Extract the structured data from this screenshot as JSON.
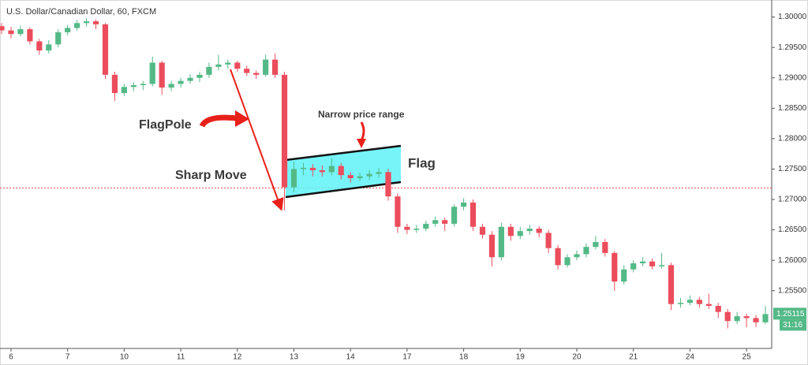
{
  "chart_data": {
    "type": "candlestick",
    "title": "U.S. Dollar/Canadian Dollar, 60, FXCM",
    "up_color": "#53b987",
    "down_color": "#eb4d5c",
    "grid": false,
    "xlim": [
      -0.17,
      81.67
    ],
    "ylim": [
      1.2455,
      1.3028
    ],
    "yticks": [
      {
        "value": 1.255,
        "label": "1.25500"
      },
      {
        "value": 1.26,
        "label": "1.26000"
      },
      {
        "value": 1.265,
        "label": "1.26500"
      },
      {
        "value": 1.27,
        "label": "1.27000"
      },
      {
        "value": 1.275,
        "label": "1.27500"
      },
      {
        "value": 1.28,
        "label": "1.28000"
      },
      {
        "value": 1.285,
        "label": "1.28500"
      },
      {
        "value": 1.29,
        "label": "1.29000"
      },
      {
        "value": 1.295,
        "label": "1.29500"
      },
      {
        "value": 1.3,
        "label": "1.30000"
      }
    ],
    "xticks": [
      {
        "value": 1,
        "label": "6"
      },
      {
        "value": 7,
        "label": "7"
      },
      {
        "value": 13,
        "label": "10"
      },
      {
        "value": 19,
        "label": "11"
      },
      {
        "value": 25,
        "label": "12"
      },
      {
        "value": 31,
        "label": "13"
      },
      {
        "value": 37,
        "label": "14"
      },
      {
        "value": 43,
        "label": "17"
      },
      {
        "value": 49,
        "label": "18"
      },
      {
        "value": 55,
        "label": "19"
      },
      {
        "value": 61,
        "label": "20"
      },
      {
        "value": 67,
        "label": "21"
      },
      {
        "value": 73,
        "label": "24"
      },
      {
        "value": 79,
        "label": "25"
      }
    ],
    "ohlc": [
      [
        1.2985,
        1.299,
        1.2972,
        1.2978
      ],
      [
        1.2978,
        1.2984,
        1.2965,
        1.2972
      ],
      [
        1.2972,
        1.2986,
        1.2968,
        1.298
      ],
      [
        1.298,
        1.2983,
        1.2955,
        1.296
      ],
      [
        1.296,
        1.2964,
        1.2938,
        1.2945
      ],
      [
        1.2945,
        1.2962,
        1.294,
        1.2955
      ],
      [
        1.2955,
        1.298,
        1.295,
        1.2975
      ],
      [
        1.2975,
        1.2987,
        1.297,
        1.2982
      ],
      [
        1.2982,
        1.2995,
        1.2978,
        1.299
      ],
      [
        1.299,
        1.2998,
        1.2984,
        1.2993
      ],
      [
        1.2993,
        1.2996,
        1.298,
        1.2988
      ],
      [
        1.2988,
        1.299,
        1.2898,
        1.2905
      ],
      [
        1.2905,
        1.291,
        1.2862,
        1.2875
      ],
      [
        1.2875,
        1.289,
        1.287,
        1.2885
      ],
      [
        1.2885,
        1.2893,
        1.2878,
        1.2888
      ],
      [
        1.2888,
        1.2895,
        1.288,
        1.289
      ],
      [
        1.289,
        1.2935,
        1.2886,
        1.2925
      ],
      [
        1.2925,
        1.2928,
        1.2872,
        1.2884
      ],
      [
        1.2884,
        1.2895,
        1.2878,
        1.289
      ],
      [
        1.289,
        1.29,
        1.2884,
        1.2895
      ],
      [
        1.2895,
        1.2906,
        1.289,
        1.29
      ],
      [
        1.29,
        1.291,
        1.2893,
        1.2905
      ],
      [
        1.2905,
        1.2925,
        1.29,
        1.2918
      ],
      [
        1.2918,
        1.2938,
        1.2912,
        1.2922
      ],
      [
        1.2922,
        1.293,
        1.2915,
        1.2925
      ],
      [
        1.2925,
        1.2928,
        1.291,
        1.2915
      ],
      [
        1.2915,
        1.292,
        1.2903,
        1.2908
      ],
      [
        1.2908,
        1.2912,
        1.2898,
        1.2905
      ],
      [
        1.2905,
        1.2938,
        1.2902,
        1.293
      ],
      [
        1.293,
        1.294,
        1.29,
        1.2905
      ],
      [
        1.2905,
        1.291,
        1.2682,
        1.272
      ],
      [
        1.272,
        1.2762,
        1.2712,
        1.275
      ],
      [
        1.275,
        1.276,
        1.274,
        1.2752
      ],
      [
        1.2752,
        1.2758,
        1.2738,
        1.2748
      ],
      [
        1.2748,
        1.2756,
        1.2738,
        1.2745
      ],
      [
        1.2745,
        1.2768,
        1.274,
        1.2755
      ],
      [
        1.2755,
        1.276,
        1.2733,
        1.274
      ],
      [
        1.274,
        1.2745,
        1.2728,
        1.2735
      ],
      [
        1.2735,
        1.2744,
        1.273,
        1.2738
      ],
      [
        1.2738,
        1.2748,
        1.2732,
        1.2742
      ],
      [
        1.2742,
        1.2752,
        1.2736,
        1.2745
      ],
      [
        1.2745,
        1.275,
        1.2698,
        1.2705
      ],
      [
        1.2705,
        1.271,
        1.2645,
        1.2655
      ],
      [
        1.2655,
        1.266,
        1.2643,
        1.265
      ],
      [
        1.265,
        1.2658,
        1.2645,
        1.2652
      ],
      [
        1.2652,
        1.2665,
        1.2648,
        1.266
      ],
      [
        1.266,
        1.2672,
        1.2655,
        1.2666
      ],
      [
        1.2666,
        1.267,
        1.2648,
        1.266
      ],
      [
        1.266,
        1.2692,
        1.2655,
        1.2688
      ],
      [
        1.2688,
        1.2702,
        1.2682,
        1.2695
      ],
      [
        1.2695,
        1.27,
        1.2648,
        1.2655
      ],
      [
        1.2655,
        1.266,
        1.2636,
        1.2642
      ],
      [
        1.2642,
        1.2648,
        1.259,
        1.2605
      ],
      [
        1.2605,
        1.2662,
        1.26,
        1.2655
      ],
      [
        1.2655,
        1.266,
        1.2632,
        1.264
      ],
      [
        1.264,
        1.2655,
        1.2635,
        1.2648
      ],
      [
        1.2648,
        1.2658,
        1.2642,
        1.2652
      ],
      [
        1.2652,
        1.2656,
        1.2638,
        1.2645
      ],
      [
        1.2645,
        1.265,
        1.2612,
        1.262
      ],
      [
        1.262,
        1.2625,
        1.2585,
        1.2592
      ],
      [
        1.2592,
        1.261,
        1.2588,
        1.2605
      ],
      [
        1.2605,
        1.2616,
        1.26,
        1.261
      ],
      [
        1.261,
        1.2628,
        1.2605,
        1.2622
      ],
      [
        1.2622,
        1.264,
        1.2618,
        1.263
      ],
      [
        1.263,
        1.2635,
        1.2606,
        1.2612
      ],
      [
        1.2612,
        1.2615,
        1.255,
        1.2565
      ],
      [
        1.2565,
        1.2592,
        1.256,
        1.2585
      ],
      [
        1.2585,
        1.26,
        1.258,
        1.2595
      ],
      [
        1.2595,
        1.2605,
        1.259,
        1.2598
      ],
      [
        1.2598,
        1.2603,
        1.2585,
        1.259
      ],
      [
        1.259,
        1.2612,
        1.2586,
        1.2592
      ],
      [
        1.2592,
        1.2596,
        1.2518,
        1.2528
      ],
      [
        1.2528,
        1.2538,
        1.2522,
        1.253
      ],
      [
        1.253,
        1.2542,
        1.2526,
        1.2535
      ],
      [
        1.2535,
        1.254,
        1.2522,
        1.2528
      ],
      [
        1.2528,
        1.2545,
        1.252,
        1.2525
      ],
      [
        1.2525,
        1.253,
        1.2505,
        1.2515
      ],
      [
        1.2515,
        1.252,
        1.2488,
        1.25
      ],
      [
        1.25,
        1.2515,
        1.2495,
        1.2508
      ],
      [
        1.2508,
        1.2512,
        1.249,
        1.2505
      ],
      [
        1.2505,
        1.251,
        1.249,
        1.2498
      ],
      [
        1.2498,
        1.2525,
        1.2495,
        1.25115
      ]
    ],
    "hline": 1.2719,
    "hline_color": "#e04848",
    "last_price": 1.25115,
    "countdown": "31:16",
    "annotations": {
      "flagpole": "FlagPole",
      "sharp_move": "Sharp Move",
      "narrow_range": "Narrow price range",
      "flag": "Flag"
    }
  }
}
